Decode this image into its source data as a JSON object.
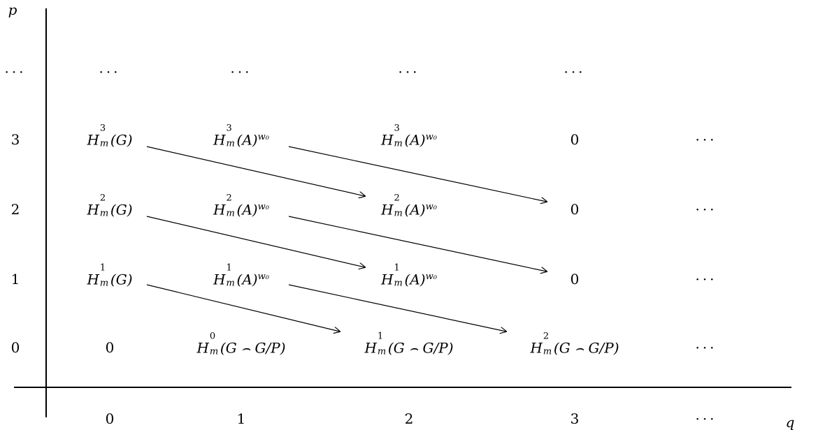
{
  "axes": {
    "x_label": "q",
    "y_label": "p",
    "x_ticks": [
      "0",
      "1",
      "2",
      "3",
      "···"
    ],
    "y_ticks": [
      "0",
      "1",
      "2",
      "3",
      "···"
    ]
  },
  "cells": [
    {
      "row": "dots",
      "col": "0",
      "text": "···"
    },
    {
      "row": "dots",
      "col": "1",
      "text": "···"
    },
    {
      "row": "dots",
      "col": "2",
      "text": "···"
    },
    {
      "row": "dots",
      "col": "3",
      "text": "···"
    },
    {
      "row": "3",
      "col": "0",
      "base": "H",
      "sup": "3",
      "sub": "m",
      "arg": "(G)"
    },
    {
      "row": "3",
      "col": "1",
      "base": "H",
      "sup": "3",
      "sub": "m",
      "arg": "(A)",
      "tail": "w₀"
    },
    {
      "row": "3",
      "col": "2",
      "base": "H",
      "sup": "3",
      "sub": "m",
      "arg": "(A)",
      "tail": "w₀"
    },
    {
      "row": "3",
      "col": "3",
      "text": "0"
    },
    {
      "row": "3",
      "col": "dots",
      "text": "···"
    },
    {
      "row": "2",
      "col": "0",
      "base": "H",
      "sup": "2",
      "sub": "m",
      "arg": "(G)"
    },
    {
      "row": "2",
      "col": "1",
      "base": "H",
      "sup": "2",
      "sub": "m",
      "arg": "(A)",
      "tail": "w₀"
    },
    {
      "row": "2",
      "col": "2",
      "base": "H",
      "sup": "2",
      "sub": "m",
      "arg": "(A)",
      "tail": "w₀"
    },
    {
      "row": "2",
      "col": "3",
      "text": "0"
    },
    {
      "row": "2",
      "col": "dots",
      "text": "···"
    },
    {
      "row": "1",
      "col": "0",
      "base": "H",
      "sup": "1",
      "sub": "m",
      "arg": "(G)"
    },
    {
      "row": "1",
      "col": "1",
      "base": "H",
      "sup": "1",
      "sub": "m",
      "arg": "(A)",
      "tail": "w₀"
    },
    {
      "row": "1",
      "col": "2",
      "base": "H",
      "sup": "1",
      "sub": "m",
      "arg": "(A)",
      "tail": "w₀"
    },
    {
      "row": "1",
      "col": "3",
      "text": "0"
    },
    {
      "row": "1",
      "col": "dots",
      "text": "···"
    },
    {
      "row": "0",
      "col": "0",
      "text": "0"
    },
    {
      "row": "0",
      "col": "1",
      "base": "H",
      "sup": "0",
      "sub": "m",
      "arg": "(G ⌢ G/P)"
    },
    {
      "row": "0",
      "col": "2",
      "base": "H",
      "sup": "1",
      "sub": "m",
      "arg": "(G ⌢ G/P)"
    },
    {
      "row": "0",
      "col": "3",
      "base": "H",
      "sup": "2",
      "sub": "m",
      "arg": "(G ⌢ G/P)"
    },
    {
      "row": "0",
      "col": "dots",
      "text": "···"
    }
  ],
  "arrows": [
    {
      "from": "H^3_m(G)",
      "to": "H^2_m(A)^w0"
    },
    {
      "from": "H^3_m(A)^w0",
      "to": "0 (p=2,q=3)"
    },
    {
      "from": "H^2_m(G)",
      "to": "H^1_m(A)^w0"
    },
    {
      "from": "H^2_m(A)^w0",
      "to": "0 (p=1,q=3)"
    },
    {
      "from": "H^1_m(G)",
      "to": "H^1_m(G/P)"
    },
    {
      "from": "H^1_m(A)^w0",
      "to": "H^2_m(G/P)"
    }
  ]
}
